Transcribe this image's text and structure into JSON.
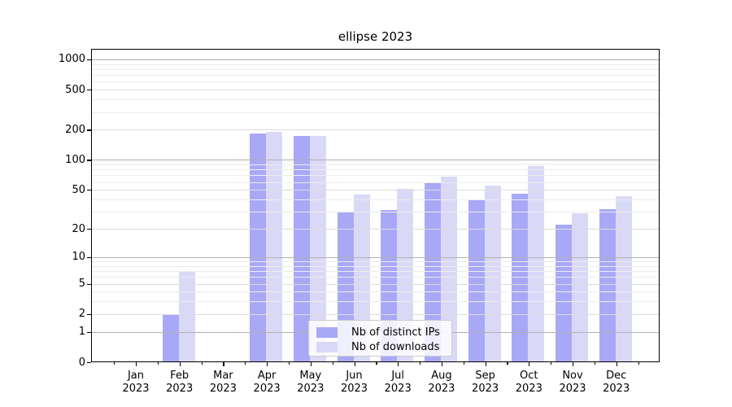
{
  "title": "ellipse 2023",
  "chart_data": {
    "type": "bar",
    "title": "ellipse 2023",
    "categories": [
      "Jan 2023",
      "Feb 2023",
      "Mar 2023",
      "Apr 2023",
      "May 2023",
      "Jun 2023",
      "Jul 2023",
      "Aug 2023",
      "Sep 2023",
      "Oct 2023",
      "Nov 2023",
      "Dec 2023"
    ],
    "series": [
      {
        "name": "Nb of distinct IPs",
        "color": "#a8a8f7",
        "values": [
          0,
          2,
          0,
          184,
          173,
          30,
          31,
          59,
          40,
          46,
          22,
          32
        ]
      },
      {
        "name": "Nb of downloads",
        "color": "#d9d9f7",
        "values": [
          0,
          7,
          0,
          192,
          175,
          45,
          51,
          68,
          55,
          86,
          29,
          43
        ]
      }
    ],
    "yscale": "log1p",
    "ylim": [
      0,
      1270
    ],
    "yticks": [
      0,
      1,
      2,
      5,
      10,
      20,
      50,
      100,
      200,
      500,
      1000
    ],
    "ytick_labels": [
      "0",
      "1",
      "2",
      "5",
      "10",
      "20",
      "50",
      "100",
      "200",
      "500",
      "1000"
    ],
    "major_yticks": [
      1,
      10,
      100,
      1000
    ],
    "minor_yticks": [
      3,
      4,
      6,
      7,
      8,
      9,
      30,
      40,
      60,
      70,
      80,
      90,
      300,
      400,
      600,
      700,
      800,
      900
    ],
    "grid": true,
    "legend_position": "lower center",
    "xlabel": "",
    "ylabel": ""
  },
  "legend": {
    "items": [
      {
        "label": "Nb of distinct IPs",
        "color": "#a8a8f7"
      },
      {
        "label": "Nb of downloads",
        "color": "#d9d9f7"
      }
    ]
  },
  "colors": {
    "background": "#ffffff",
    "major_grid": "#b0b0b0",
    "labeled_grid": "#dcdcdc",
    "minor_grid": "#ececec",
    "spine": "#000000"
  }
}
